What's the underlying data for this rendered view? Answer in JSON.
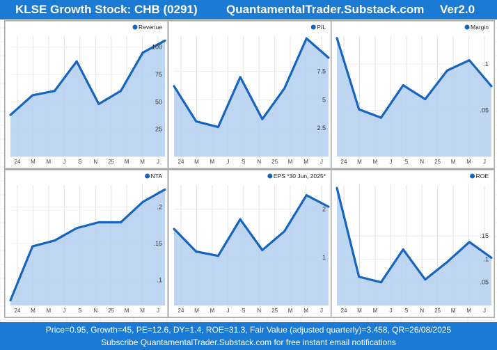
{
  "header": {
    "title": "KLSE Growth Stock: CHB (0291)",
    "site": "QuantamentalTrader.Substack.com",
    "version": "Ver2.0"
  },
  "footer": {
    "line1": "Price=0.95, Growth=45, PE=12.6, DY=1.4, ROE=31.3, Fair Value (adjusted quarterly)=3.458, QR=26/08/2025",
    "line2": "Subscribe QuantamentalTrader.Substack.com for free instant email notifications"
  },
  "colors": {
    "accent": "#1a7ad4",
    "line": "#1565c0",
    "fill": "#b3cfee"
  },
  "chart_data": [
    {
      "type": "area",
      "title": "Revenue",
      "legend": "Revenue",
      "legend_position": "top-right",
      "x_ticks": [
        "24",
        "M",
        "M",
        "J",
        "S",
        "N",
        "25",
        "M",
        "M",
        "J"
      ],
      "values": [
        38,
        56,
        60,
        87,
        48,
        60,
        95,
        106
      ],
      "ylim": [
        0,
        110
      ],
      "y_ticks": [
        25,
        50,
        75,
        100
      ],
      "y_tick_labels": [
        "25",
        "50",
        "75",
        "100"
      ]
    },
    {
      "type": "area",
      "title": "P/L",
      "legend": "P/L",
      "legend_position": "top-right",
      "x_ticks": [
        "24",
        "M",
        "M",
        "J",
        "S",
        "N",
        "25",
        "M",
        "M",
        "J"
      ],
      "values": [
        6.2,
        3.1,
        2.6,
        7.0,
        3.3,
        6.0,
        10.4,
        8.7
      ],
      "ylim": [
        0,
        10.6
      ],
      "y_ticks": [
        2.5,
        5,
        7.5
      ],
      "y_tick_labels": [
        "2.5",
        "5",
        "7.5"
      ]
    },
    {
      "type": "area",
      "title": "Margin",
      "legend": "Margin",
      "legend_position": "top-right",
      "x_ticks": [
        "24",
        "M",
        "M",
        "J",
        "S",
        "N",
        "25",
        "M",
        "M",
        "J"
      ],
      "values": [
        0.128,
        0.051,
        0.042,
        0.077,
        0.062,
        0.093,
        0.104,
        0.076
      ],
      "ylim": [
        0,
        0.13
      ],
      "y_ticks": [
        0.05,
        0.1
      ],
      "y_tick_labels": [
        ".05",
        ".1"
      ]
    },
    {
      "type": "area",
      "title": "NTA",
      "legend": "NTA",
      "legend_position": "top-right",
      "x_ticks": [
        "24",
        "M",
        "M",
        "J",
        "S",
        "N",
        "25",
        "M",
        "M",
        "J"
      ],
      "values": [
        0.072,
        0.146,
        0.154,
        0.171,
        0.179,
        0.179,
        0.207,
        0.224
      ],
      "ylim": [
        0.065,
        0.23
      ],
      "y_ticks": [
        0.1,
        0.15,
        0.2
      ],
      "y_tick_labels": [
        ".1",
        ".15",
        ".2"
      ]
    },
    {
      "type": "area",
      "title": "EPS *30 Jun, 2025*",
      "legend": "EPS *30 Jun, 2025*",
      "legend_position": "top-right",
      "x_ticks": [
        "24",
        "M",
        "M",
        "J",
        "S",
        "N",
        "25",
        "M",
        "M",
        "J"
      ],
      "values": [
        1.59,
        1.12,
        1.03,
        1.79,
        1.15,
        1.54,
        2.29,
        2.05
      ],
      "ylim": [
        0,
        2.5
      ],
      "y_ticks": [
        1,
        2
      ],
      "y_tick_labels": [
        "1",
        "2"
      ]
    },
    {
      "type": "area",
      "title": "ROE",
      "legend": "ROE",
      "legend_position": "top-right",
      "x_ticks": [
        "24",
        "M",
        "M",
        "J",
        "S",
        "N",
        "25",
        "M",
        "M",
        "J"
      ],
      "values": [
        0.254,
        0.062,
        0.05,
        0.121,
        0.056,
        0.094,
        0.137,
        0.103
      ],
      "ylim": [
        0,
        0.26
      ],
      "y_ticks": [
        0.05,
        0.1,
        0.15
      ],
      "y_tick_labels": [
        ".05",
        ".1",
        ".15"
      ]
    }
  ]
}
